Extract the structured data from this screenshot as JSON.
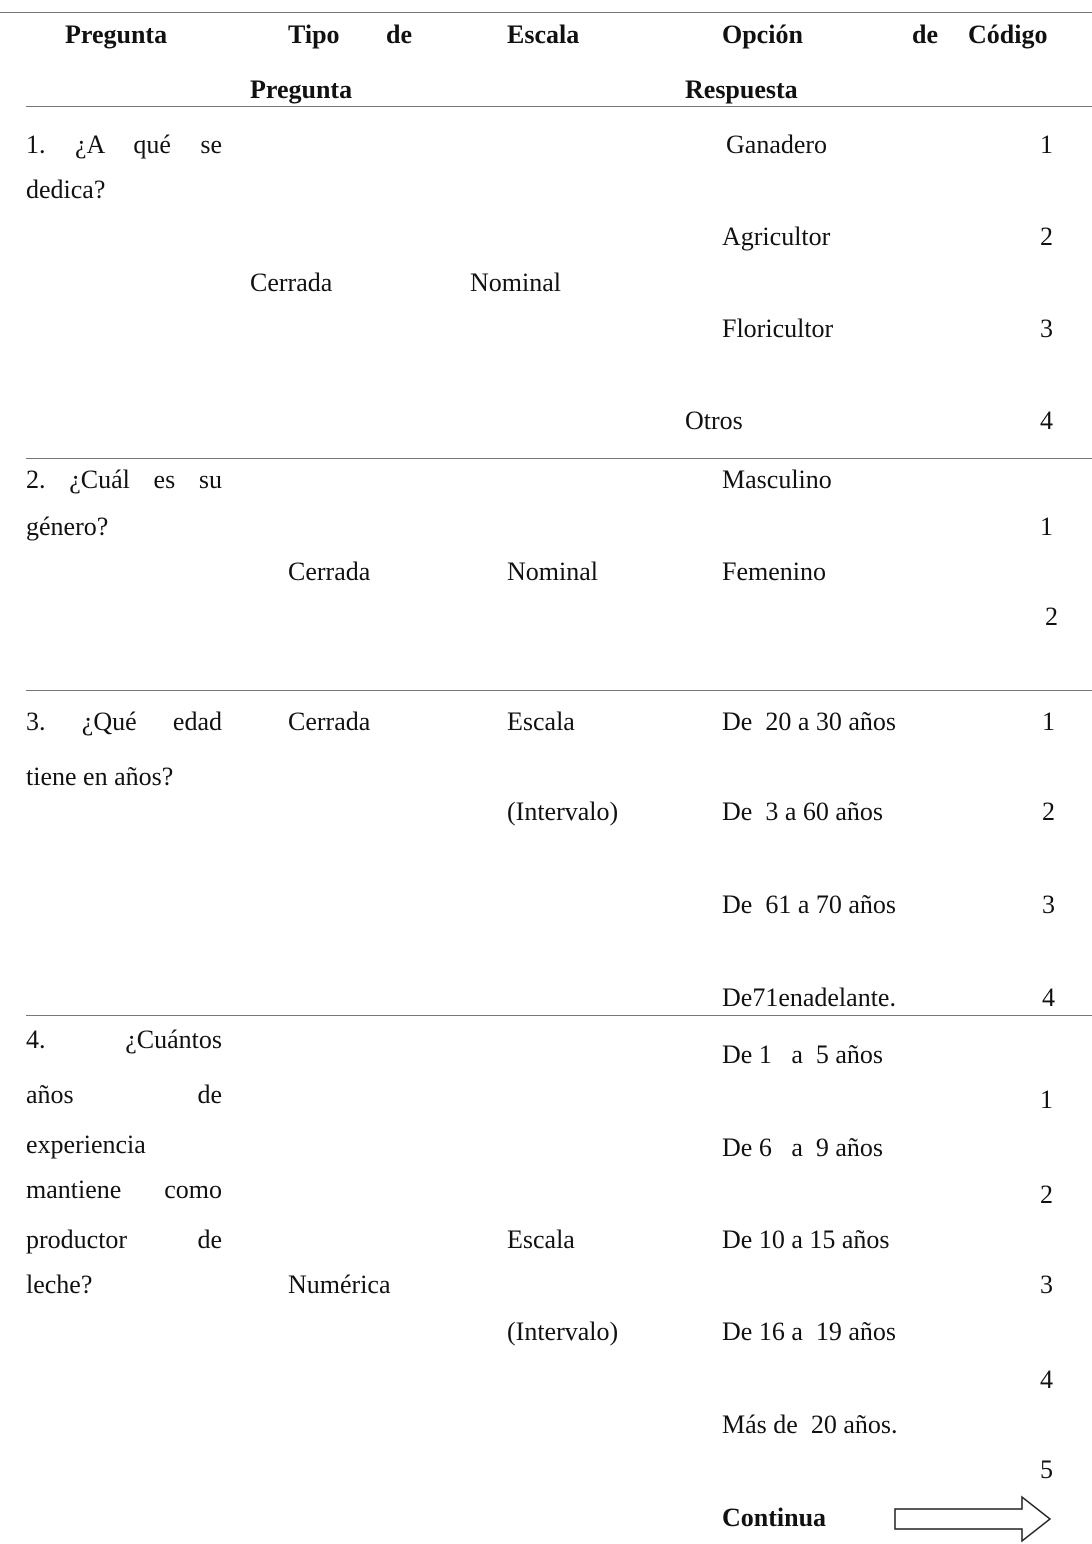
{
  "header": [
    [
      "Pregunta"
    ],
    [
      "Tipo de",
      "Pregunta"
    ],
    [
      "Escala"
    ],
    [
      "Opción de",
      "Respuesta"
    ],
    [
      "Código"
    ]
  ],
  "rows": [
    {
      "question": [
        "1. ¿A qué se",
        "dedica?"
      ],
      "type": "Cerrada",
      "scale": [
        "Nominal"
      ],
      "options": [
        "Ganadero",
        "Agricultor",
        "Floricultor",
        "Otros"
      ],
      "codes": [
        1,
        2,
        3,
        4
      ]
    },
    {
      "question": [
        "2. ¿Cuál es su",
        "género?"
      ],
      "type": "Cerrada",
      "scale": [
        "Nominal"
      ],
      "options": [
        "Masculino",
        "Femenino"
      ],
      "codes": [
        1,
        2
      ]
    },
    {
      "question": [
        "3. ¿Qué edad",
        "tiene en años?"
      ],
      "type": "Cerrada",
      "scale": [
        "Escala",
        "(Intervalo)"
      ],
      "options": [
        "De  20 a 30 años",
        "De  3 a 60 años",
        "De  61 a 70 años",
        "De71enadelante."
      ],
      "codes": [
        1,
        2,
        3,
        4
      ]
    },
    {
      "question": [
        "4. ¿Cuántos",
        "años de",
        "experiencia",
        "mantiene como",
        "productor de",
        "leche?"
      ],
      "type": "Numérica",
      "scale": [
        "Escala",
        "(Intervalo)"
      ],
      "options": [
        "De 1   a  5 años",
        "De 6   a  9 años",
        "De 10 a 15 años",
        "De 16 a  19 años",
        "Más de  20 años."
      ],
      "codes": [
        1,
        2,
        3,
        4,
        5
      ]
    }
  ],
  "footer": "Continua"
}
